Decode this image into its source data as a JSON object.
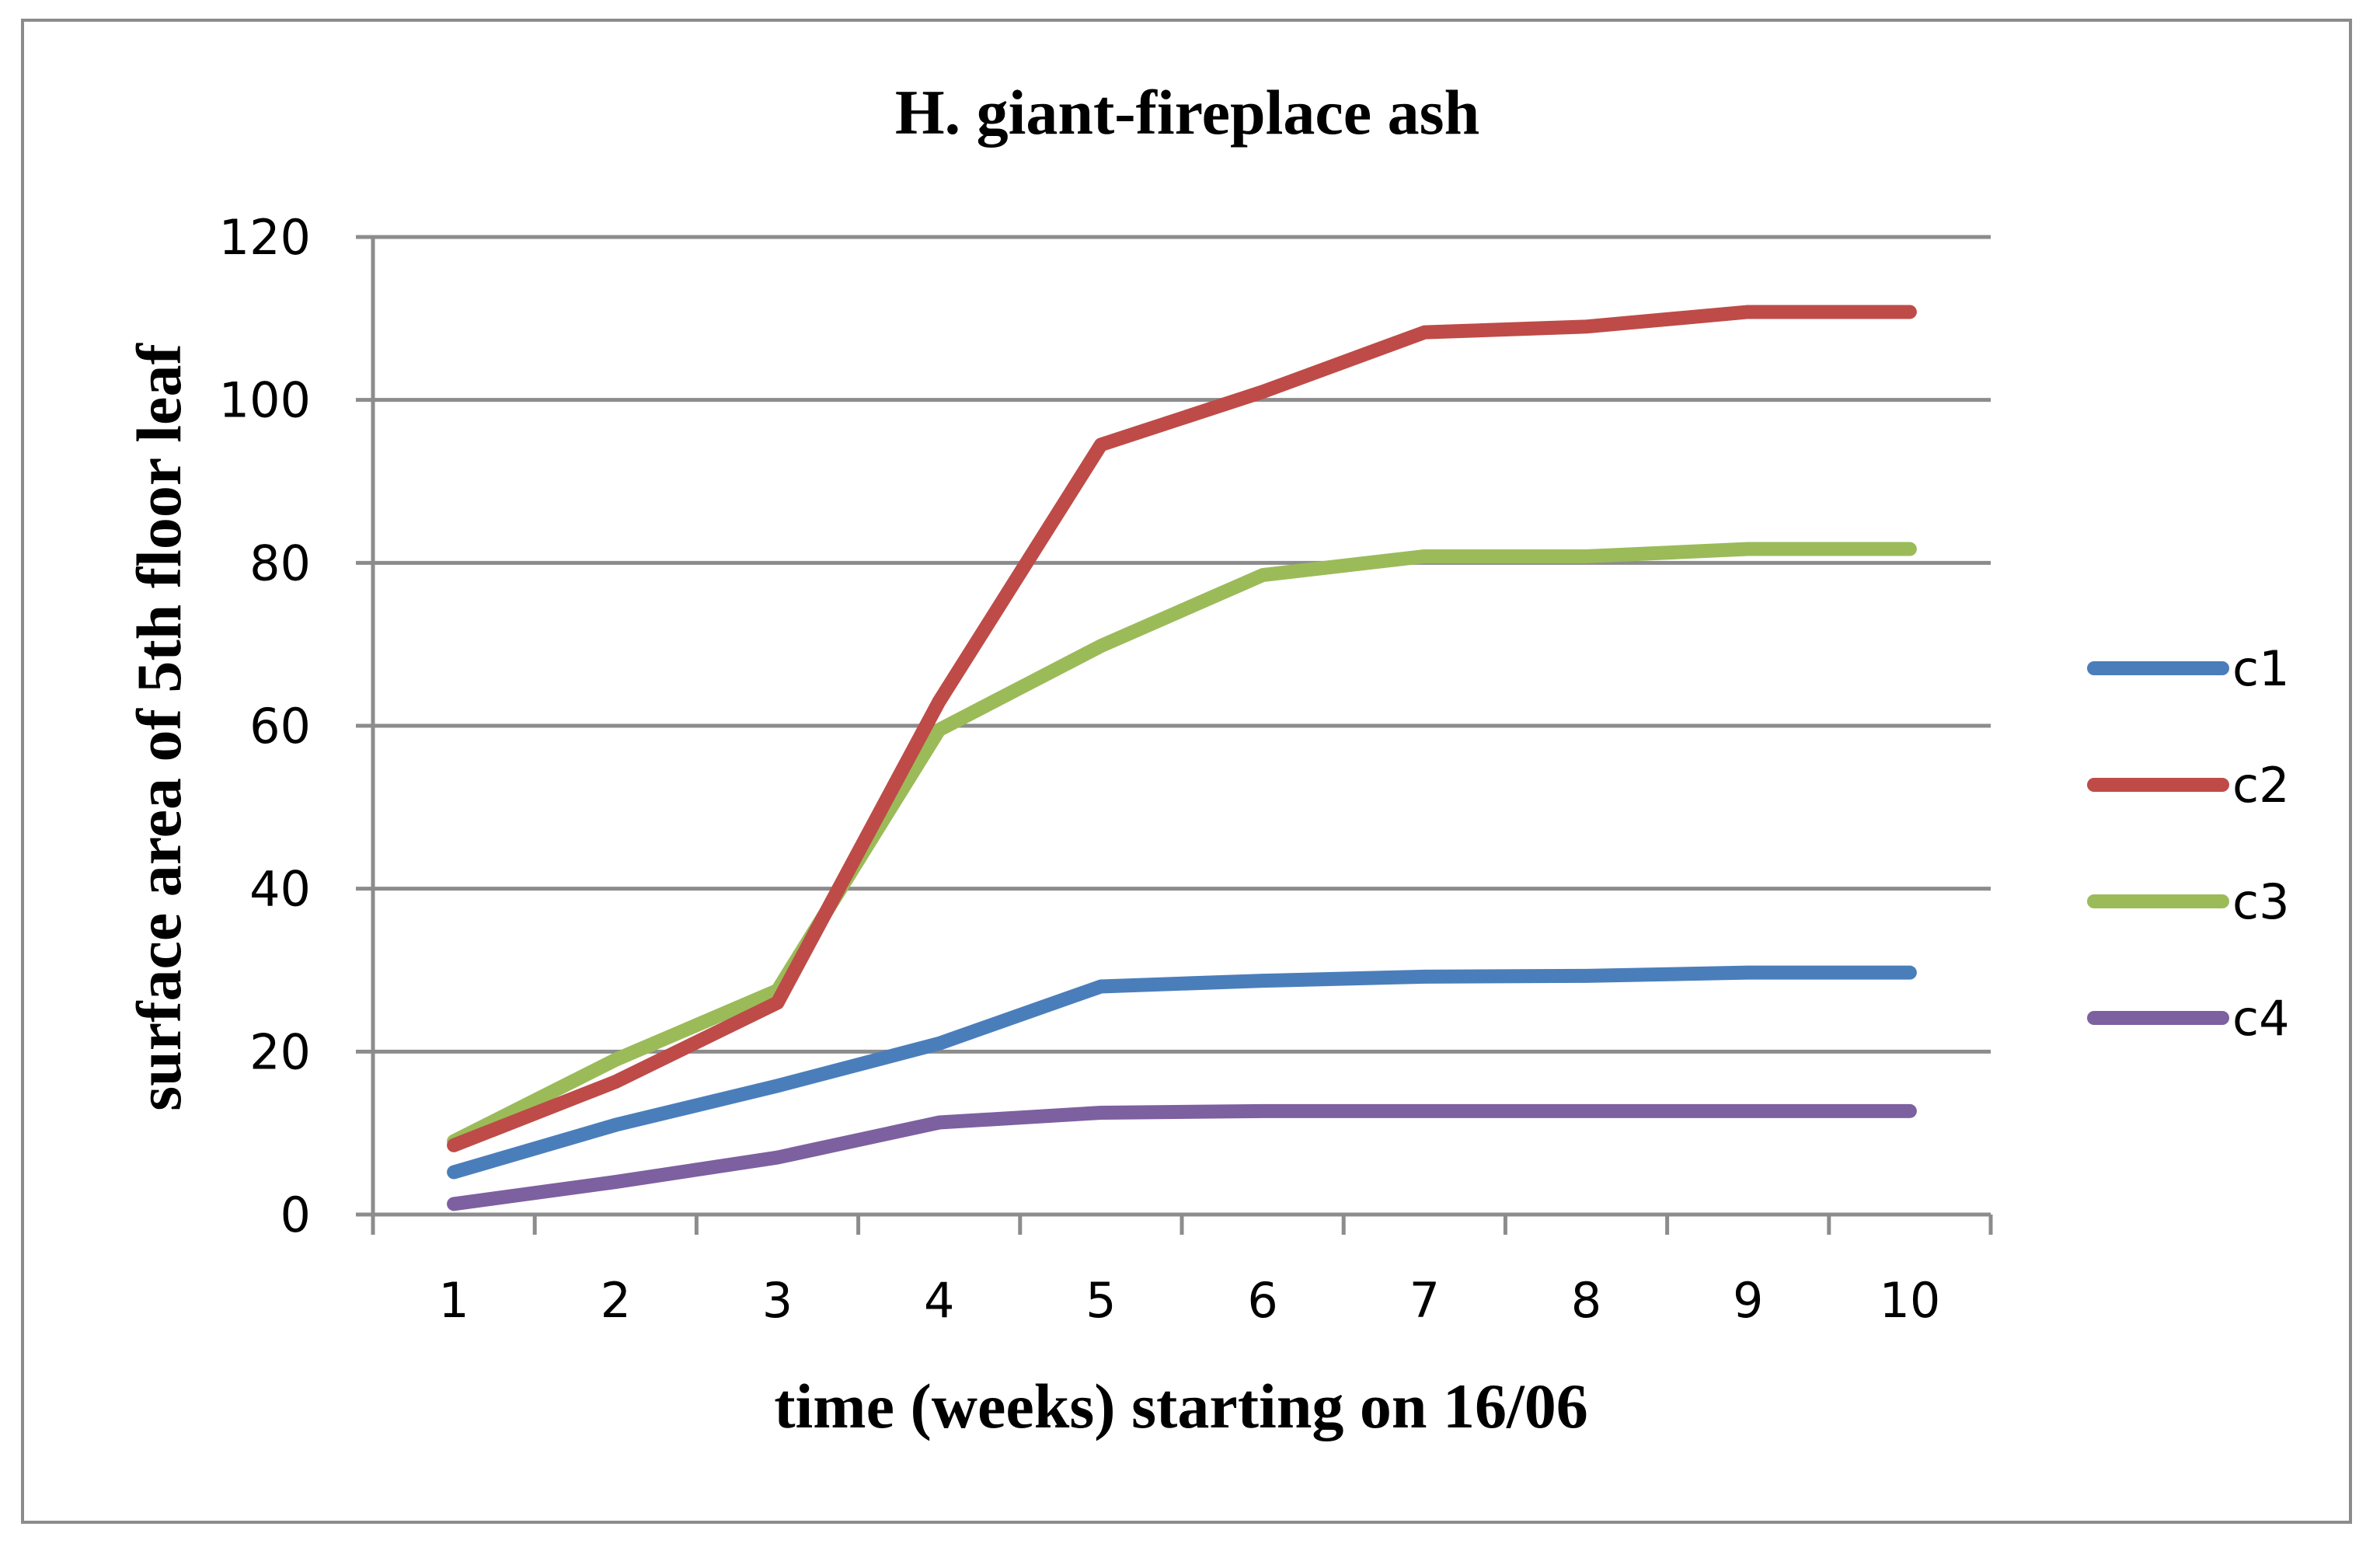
{
  "chart_data": {
    "type": "line",
    "title": "H. giant-fireplace ash",
    "xlabel": "time (weeks) starting on 16/06",
    "ylabel": "surface area of 5th floor leaf",
    "categories": [
      "1",
      "2",
      "3",
      "4",
      "5",
      "6",
      "7",
      "8",
      "9",
      "10"
    ],
    "ylim": [
      0,
      120
    ],
    "yticks": [
      0,
      20,
      40,
      60,
      80,
      100,
      120
    ],
    "grid": "horizontal",
    "legend_position": "right",
    "series": [
      {
        "name": "c1",
        "color": "#4a7ebb",
        "values": [
          5.2,
          11,
          15.8,
          21,
          28,
          28.7,
          29.2,
          29.3,
          29.7,
          29.7
        ]
      },
      {
        "name": "c2",
        "color": "#be4b48",
        "values": [
          8.5,
          16.3,
          26,
          63,
          94.5,
          101,
          108.3,
          109,
          110.8,
          110.8
        ]
      },
      {
        "name": "c3",
        "color": "#9bbb59",
        "values": [
          9,
          19,
          27.5,
          59.5,
          69.8,
          78.5,
          80.8,
          80.8,
          81.7,
          81.7
        ]
      },
      {
        "name": "c4",
        "color": "#7d60a0",
        "values": [
          1.3,
          4,
          7,
          11.3,
          12.5,
          12.7,
          12.7,
          12.7,
          12.7,
          12.7
        ]
      }
    ]
  }
}
